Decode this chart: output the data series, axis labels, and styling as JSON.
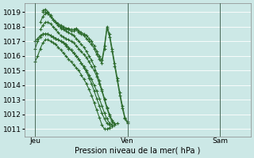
{
  "xlabel": "Pression niveau de la mer( hPa )",
  "bg_color": "#cce8e6",
  "grid_color": "#ffffff",
  "line_color": "#2d6b2d",
  "yticks": [
    1011,
    1012,
    1013,
    1014,
    1015,
    1016,
    1017,
    1018,
    1019
  ],
  "day_labels": [
    "Jeu",
    "Ven",
    "Sam"
  ],
  "day_positions": [
    0,
    36,
    72
  ],
  "xlim": [
    -4,
    84
  ],
  "ylim": [
    1010.5,
    1019.6
  ],
  "series": [
    {
      "x_start": 0,
      "step": 1,
      "y": [
        1015.6,
        1016.0,
        1016.5,
        1016.9,
        1017.1,
        1017.1,
        1017.0,
        1016.9,
        1016.8,
        1016.6,
        1016.4,
        1016.2,
        1016.0,
        1015.8,
        1015.6,
        1015.4,
        1015.2,
        1015.0,
        1014.7,
        1014.4,
        1014.1,
        1013.7,
        1013.3,
        1012.8,
        1012.3,
        1011.8,
        1011.3,
        1011.0,
        1011.0,
        1011.1,
        1011.2,
        1011.3,
        1011.4
      ]
    },
    {
      "x_start": 0,
      "step": 1,
      "y": [
        1016.5,
        1017.0,
        1017.3,
        1017.5,
        1017.5,
        1017.5,
        1017.4,
        1017.3,
        1017.2,
        1017.1,
        1017.0,
        1016.9,
        1016.8,
        1016.6,
        1016.4,
        1016.2,
        1016.0,
        1015.8,
        1015.5,
        1015.3,
        1015.0,
        1014.7,
        1014.4,
        1014.0,
        1013.6,
        1013.1,
        1012.6,
        1012.1,
        1011.7,
        1011.4,
        1011.3
      ]
    },
    {
      "x_start": 0,
      "step": 1,
      "y": [
        1017.0,
        1017.2,
        1017.4,
        1017.5,
        1017.5,
        1017.5,
        1017.4,
        1017.3,
        1017.2,
        1017.1,
        1017.0,
        1016.9,
        1016.7,
        1016.5,
        1016.4,
        1016.2,
        1016.0,
        1015.8,
        1015.5,
        1015.2,
        1014.9,
        1014.5,
        1014.1,
        1013.6,
        1013.1,
        1012.6,
        1012.1,
        1011.7,
        1011.4,
        1011.3
      ]
    },
    {
      "x_start": 2,
      "step": 1,
      "y": [
        1017.8,
        1018.1,
        1018.3,
        1018.3,
        1018.2,
        1018.0,
        1017.8,
        1017.6,
        1017.4,
        1017.3,
        1017.2,
        1017.1,
        1017.0,
        1016.9,
        1016.7,
        1016.5,
        1016.3,
        1016.1,
        1015.9,
        1015.6,
        1015.3,
        1015.0,
        1014.6,
        1014.1,
        1013.6,
        1013.0,
        1012.4,
        1011.9,
        1011.5,
        1011.3
      ]
    },
    {
      "x_start": 2,
      "step": 1,
      "y": [
        1018.3,
        1018.7,
        1018.9,
        1018.9,
        1018.7,
        1018.5,
        1018.3,
        1018.1,
        1017.9,
        1017.8,
        1017.7,
        1017.6,
        1017.5,
        1017.4,
        1017.2,
        1017.0,
        1016.8,
        1016.6,
        1016.3,
        1016.0,
        1015.7,
        1015.3,
        1014.8,
        1014.3,
        1013.7,
        1013.1,
        1012.5,
        1012.0,
        1011.6,
        1011.4
      ]
    },
    {
      "x_start": 3,
      "step": 1,
      "y": [
        1019.1,
        1019.2,
        1019.0,
        1018.8,
        1018.5,
        1018.3,
        1018.2,
        1018.1,
        1018.0,
        1017.9,
        1017.9,
        1017.8,
        1017.8,
        1017.9,
        1017.7,
        1017.6,
        1017.5,
        1017.4,
        1017.2,
        1017.0,
        1016.7,
        1016.3,
        1016.0,
        1015.7,
        1016.7,
        1018.0,
        1017.5,
        1016.5,
        1015.5,
        1014.5,
        1013.5,
        1012.6,
        1011.8,
        1011.5
      ]
    },
    {
      "x_start": 3,
      "step": 1,
      "y": [
        1019.0,
        1019.0,
        1018.9,
        1018.7,
        1018.5,
        1018.3,
        1018.1,
        1018.0,
        1017.9,
        1017.8,
        1017.8,
        1017.7,
        1017.7,
        1017.8,
        1017.6,
        1017.5,
        1017.4,
        1017.2,
        1017.0,
        1016.8,
        1016.5,
        1016.1,
        1015.8,
        1015.5,
        1016.5,
        1017.9,
        1017.3,
        1016.3,
        1015.3,
        1014.3,
        1013.3,
        1012.4,
        1011.7,
        1011.4
      ]
    }
  ]
}
